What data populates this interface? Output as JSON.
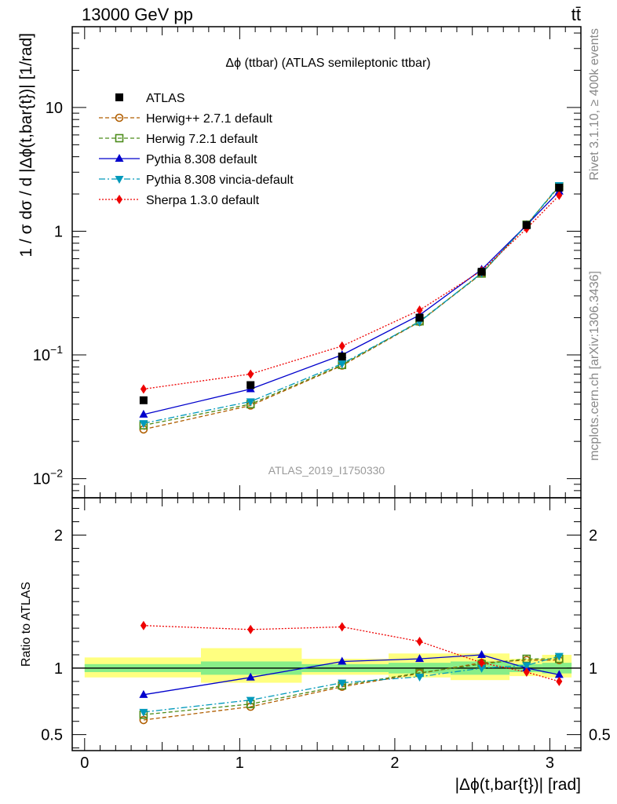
{
  "header": {
    "left": "13000 GeV pp",
    "right": "tt̄"
  },
  "side_text": {
    "top": "Rivet 3.1.10, ≥ 400k events",
    "bottom": "mcplots.cern.ch [arXiv:1306.3436]"
  },
  "watermark": "ATLAS_2019_I1750330",
  "colors": {
    "data": "#000000",
    "herwig_pp": "#b05e00",
    "herwig7": "#4c8c1a",
    "pythia": "#0000cc",
    "vincia": "#0099bb",
    "sherpa": "#ee0000",
    "band_green": "#88ee88",
    "band_yellow": "#ffff80"
  },
  "chart_data": [
    {
      "type": "line",
      "panel": "main",
      "title": "Δϕ (ttbar) (ATLAS semileptonic ttbar)",
      "ylabel": "1 / σ dσ / d |Δϕ(t,bar{t})| [1/rad]",
      "xlabel": "",
      "yscale": "log",
      "ylim": [
        0.007,
        45
      ],
      "xlim": [
        -0.08,
        3.2
      ],
      "y_tick_labels": [
        {
          "value": 0.01,
          "base": "10",
          "exp": "−2"
        },
        {
          "value": 0.1,
          "base": "10",
          "exp": "−1"
        },
        {
          "value": 1,
          "base": "1",
          "exp": ""
        },
        {
          "value": 10,
          "base": "10",
          "exp": ""
        }
      ],
      "legend": [
        {
          "key": "data",
          "label": "ATLAS"
        },
        {
          "key": "herwig_pp",
          "label": "Herwig++ 2.7.1 default"
        },
        {
          "key": "herwig7",
          "label": "Herwig 7.2.1 default"
        },
        {
          "key": "pythia",
          "label": "Pythia 8.308 default"
        },
        {
          "key": "vincia",
          "label": "Pythia 8.308 vincia-default"
        },
        {
          "key": "sherpa",
          "label": "Sherpa 1.3.0 default"
        }
      ],
      "x": [
        0.38,
        1.07,
        1.66,
        2.16,
        2.56,
        2.85,
        3.06
      ],
      "data": {
        "name": "ATLAS",
        "values": [
          0.043,
          0.057,
          0.097,
          0.2,
          0.47,
          1.12,
          2.25
        ]
      },
      "series": [
        {
          "key": "herwig_pp",
          "name": "Herwig++ 2.7.1 default",
          "values": [
            0.025,
            0.039,
            0.082,
            0.185,
            0.455,
            1.13,
            2.3
          ]
        },
        {
          "key": "herwig7",
          "name": "Herwig 7.2.1 default",
          "values": [
            0.027,
            0.04,
            0.083,
            0.187,
            0.455,
            1.13,
            2.3
          ]
        },
        {
          "key": "pythia",
          "name": "Pythia 8.308 default",
          "values": [
            0.033,
            0.053,
            0.1,
            0.21,
            0.49,
            1.12,
            2.1
          ]
        },
        {
          "key": "vincia",
          "name": "Pythia 8.308 vincia-default",
          "values": [
            0.028,
            0.042,
            0.085,
            0.185,
            0.46,
            1.12,
            2.35
          ]
        },
        {
          "key": "sherpa",
          "name": "Sherpa 1.3.0 default",
          "values": [
            0.053,
            0.07,
            0.118,
            0.23,
            0.48,
            1.05,
            1.95
          ]
        }
      ]
    },
    {
      "type": "line",
      "panel": "ratio",
      "ylabel": "Ratio to ATLAS",
      "xlabel": "|Δϕ(t,bar{t})| [rad]",
      "ylim": [
        0.38,
        2.28
      ],
      "xlim": [
        -0.08,
        3.2
      ],
      "y_tick_labels": [
        {
          "value": 0.5,
          "label": "0.5"
        },
        {
          "value": 1,
          "label": "1"
        },
        {
          "value": 2,
          "label": "2"
        }
      ],
      "x_tick_labels": [
        {
          "value": 0,
          "label": "0"
        },
        {
          "value": 1,
          "label": "1"
        },
        {
          "value": 2,
          "label": "2"
        },
        {
          "value": 3,
          "label": "3"
        }
      ],
      "bins": [
        {
          "lo": 0.0,
          "hi": 0.75,
          "green": [
            0.97,
            1.03
          ],
          "yellow": [
            0.93,
            1.08
          ]
        },
        {
          "lo": 0.75,
          "hi": 1.4,
          "green": [
            0.95,
            1.05
          ],
          "yellow": [
            0.89,
            1.15
          ]
        },
        {
          "lo": 1.4,
          "hi": 1.96,
          "green": [
            0.97,
            1.03
          ],
          "yellow": [
            0.95,
            1.07
          ]
        },
        {
          "lo": 1.96,
          "hi": 2.36,
          "green": [
            0.96,
            1.04
          ],
          "yellow": [
            0.93,
            1.11
          ]
        },
        {
          "lo": 2.36,
          "hi": 2.74,
          "green": [
            0.95,
            1.05
          ],
          "yellow": [
            0.91,
            1.11
          ]
        },
        {
          "lo": 2.74,
          "hi": 2.95,
          "green": [
            0.97,
            1.03
          ],
          "yellow": [
            0.94,
            1.07
          ]
        },
        {
          "lo": 2.95,
          "hi": 3.14,
          "green": [
            0.96,
            1.04
          ],
          "yellow": [
            0.93,
            1.1
          ]
        }
      ],
      "x": [
        0.38,
        1.07,
        1.66,
        2.16,
        2.56,
        2.85,
        3.06
      ],
      "series": [
        {
          "key": "herwig_pp",
          "values": [
            0.61,
            0.71,
            0.86,
            0.96,
            1.04,
            1.06,
            1.06
          ]
        },
        {
          "key": "herwig7",
          "values": [
            0.65,
            0.73,
            0.87,
            0.965,
            1.03,
            1.07,
            1.07
          ]
        },
        {
          "key": "pythia",
          "values": [
            0.8,
            0.93,
            1.05,
            1.07,
            1.1,
            1.0,
            0.95
          ]
        },
        {
          "key": "vincia",
          "values": [
            0.67,
            0.76,
            0.89,
            0.935,
            1.0,
            1.02,
            1.09
          ]
        },
        {
          "key": "sherpa",
          "values": [
            1.32,
            1.29,
            1.31,
            1.2,
            1.04,
            0.97,
            0.9
          ]
        }
      ]
    }
  ]
}
